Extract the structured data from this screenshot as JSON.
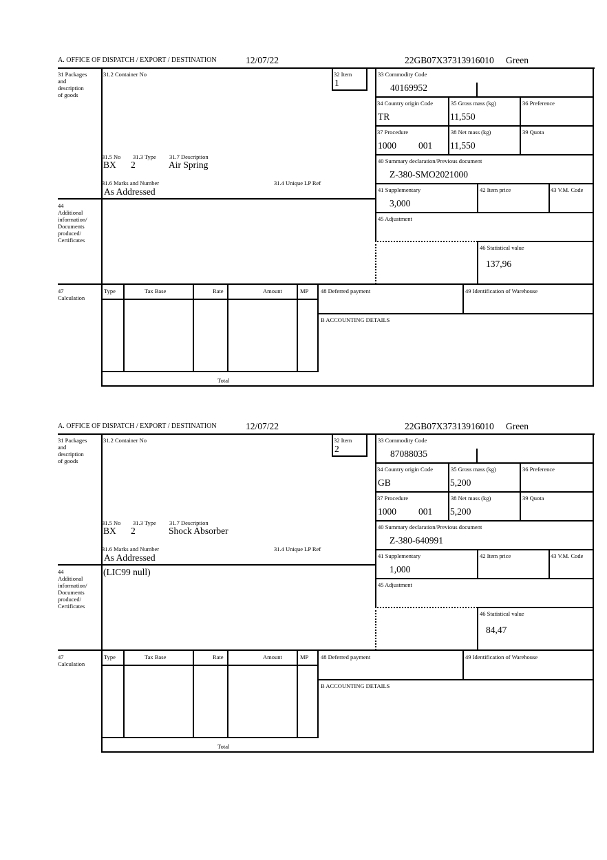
{
  "labels": {
    "office": "A. OFFICE OF DISPATCH / EXPORT / DESTINATION",
    "box31": [
      "31 Packages",
      "and",
      "description",
      "of goods"
    ],
    "box31_2": "31.2 Container No",
    "box32": "32 Item",
    "box31_5": "31.5 No",
    "box31_3": "31.3 Type",
    "box31_7": "31.7 Description",
    "box31_6": "31.6 Marks and Number",
    "box31_4": "31.4 Unique LP Ref",
    "box33": "33 Commodity Code",
    "box34": "34 Country origin Code",
    "box35": "35 Gross mass (kg)",
    "box36": "36 Preference",
    "box37": "37 Procedure",
    "box38": "38 Net mass (kg)",
    "box39": "39 Quota",
    "box40": "40 Summary declaration/Previous document",
    "box41": "41 Supplementary",
    "box42": "42 Item price",
    "box43": "43 V.M. Code",
    "box45": "45 Adjustment",
    "box46": "46 Statistical value",
    "box44": [
      "44",
      "Additional",
      "information/",
      "Documents",
      "produced/",
      "Certificates"
    ],
    "box47": [
      "47",
      "Calculation"
    ],
    "calc_cols": [
      "Type",
      "Tax Base",
      "Rate",
      "Amount",
      "MP"
    ],
    "total": "Total",
    "box48": "48 Deferred payment",
    "box49": "49 Identification of Warehouse",
    "boxB": "B ACCOUNTING DETAILS"
  },
  "forms": [
    {
      "date": "12/07/22",
      "reference": "22GB07X37313916010",
      "route": "Green",
      "item": "1",
      "no": "BX",
      "type": "2",
      "description": "Air Spring",
      "marks": "As Addressed",
      "commodity": "40169952",
      "origin": "TR",
      "gross": "11,550",
      "procedure": "1000",
      "procedure_extra": "001",
      "net": "11,550",
      "summary": "Z-380-SMO2021000",
      "supplementary": "3,000",
      "statistical": "137,96",
      "additional": ""
    },
    {
      "date": "12/07/22",
      "reference": "22GB07X37313916010",
      "route": "Green",
      "item": "2",
      "no": "BX",
      "type": "2",
      "description": "Shock Absorber",
      "marks": "As Addressed",
      "commodity": "87088035",
      "origin": "GB",
      "gross": "5,200",
      "procedure": "1000",
      "procedure_extra": "001",
      "net": "5,200",
      "summary": "Z-380-640991",
      "supplementary": "1,000",
      "statistical": "84,47",
      "additional": "(LIC99 null)"
    }
  ]
}
